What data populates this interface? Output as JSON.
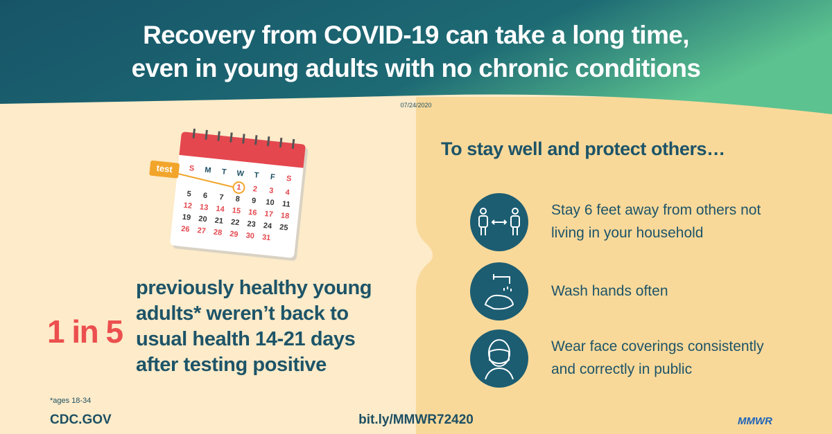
{
  "header": {
    "title_lines": [
      "Recovery from COVID-19 can take a long time,",
      "even in young adults with no chronic conditions"
    ],
    "date": "07/24/2020"
  },
  "calendar": {
    "tag": "test",
    "weekdays": [
      "S",
      "M",
      "T",
      "W",
      "T",
      "F",
      "S"
    ],
    "dates": [
      1,
      2,
      3,
      4,
      5,
      6,
      7,
      8,
      9,
      10,
      11,
      12,
      13,
      14,
      15,
      16,
      17,
      18,
      19,
      20,
      21,
      22,
      23,
      24,
      25,
      26,
      27,
      28,
      29,
      30,
      31
    ]
  },
  "stat": {
    "highlight": "1 in 5",
    "lines": [
      "previously healthy young",
      "adults* weren’t back to",
      "usual health 14-21 days",
      "after testing positive"
    ],
    "footnote": "*ages 18-34"
  },
  "advice": {
    "heading": "To stay well and protect others…",
    "tips": [
      [
        "Stay 6 feet away from others not",
        "living in your household"
      ],
      [
        "Wash hands often"
      ],
      [
        "Wear face coverings consistently",
        "and correctly in public"
      ]
    ]
  },
  "footer": {
    "source": "CDC.GOV",
    "link": "bit.ly/MMWR72420",
    "brand": "MMWR"
  }
}
